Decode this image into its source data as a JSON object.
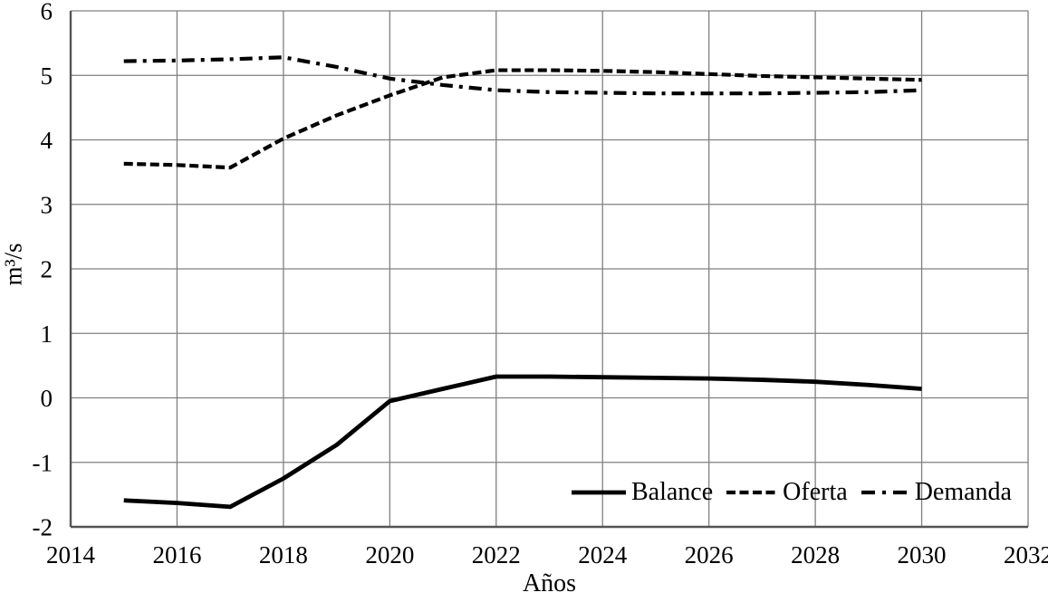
{
  "chart_data": {
    "type": "line",
    "title": "",
    "xlabel": "Años",
    "ylabel": "m³/s",
    "xlim": [
      2014,
      2032
    ],
    "ylim": [
      -2,
      6
    ],
    "x_ticks": [
      2014,
      2016,
      2018,
      2020,
      2022,
      2024,
      2026,
      2028,
      2030,
      2032
    ],
    "x_tick_labels": [
      "2014",
      "2016",
      "2018",
      "2020",
      "2022",
      "2024",
      "2026",
      "2028",
      "2030",
      "2032"
    ],
    "y_ticks": [
      6,
      5,
      4,
      3,
      2,
      1,
      0,
      -1,
      -2
    ],
    "y_tick_labels": [
      "6",
      "5",
      "4",
      "3",
      "2",
      "1",
      "0",
      "-1",
      "-2"
    ],
    "grid": true,
    "legend_position": "inside-bottom-right",
    "x": [
      2015,
      2016,
      2017,
      2018,
      2019,
      2020,
      2021,
      2022,
      2023,
      2024,
      2025,
      2026,
      2027,
      2028,
      2029,
      2030
    ],
    "series": [
      {
        "name": "Balance",
        "line_style": "solid",
        "color": "#000000",
        "values": [
          -1.59,
          -1.63,
          -1.69,
          -1.25,
          -0.73,
          -0.05,
          0.14,
          0.33,
          0.33,
          0.32,
          0.31,
          0.3,
          0.28,
          0.25,
          0.2,
          0.14
        ]
      },
      {
        "name": "Oferta",
        "line_style": "dashed",
        "color": "#000000",
        "values": [
          3.63,
          3.61,
          3.57,
          4.02,
          4.38,
          4.69,
          4.97,
          5.08,
          5.08,
          5.07,
          5.05,
          5.02,
          4.99,
          4.97,
          4.95,
          4.93
        ]
      },
      {
        "name": "Demanda",
        "line_style": "dashdot",
        "color": "#000000",
        "values": [
          5.22,
          5.23,
          5.25,
          5.28,
          5.13,
          4.95,
          4.85,
          4.77,
          4.74,
          4.73,
          4.72,
          4.72,
          4.72,
          4.73,
          4.74,
          4.77
        ]
      }
    ],
    "colors": {
      "grid": "#808080",
      "axis": "#555555",
      "series": "#000000",
      "background": "#ffffff"
    }
  }
}
